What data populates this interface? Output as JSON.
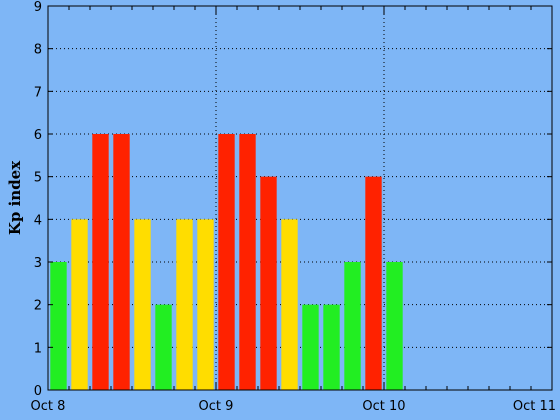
{
  "chart_data": {
    "type": "bar",
    "ylabel": "Kp index",
    "xlabel": "",
    "title": "",
    "ylim": [
      0,
      9
    ],
    "yticks": [
      "0",
      "1",
      "2",
      "3",
      "4",
      "5",
      "6",
      "7",
      "8",
      "9"
    ],
    "x_tick_labels": [
      "Oct 8",
      "Oct 9",
      "Oct 10",
      "Oct 11"
    ],
    "interval_hours": 3,
    "values": [
      3,
      4,
      6,
      6,
      4,
      2,
      4,
      4,
      6,
      6,
      5,
      4,
      2,
      2,
      3,
      5,
      3
    ],
    "grid": true,
    "color_rule": "green below 4, yellow at 4, red at 5 and above",
    "colors": {
      "background": "#7eb6f6",
      "green": "#22ee22",
      "yellow": "#ffdd00",
      "red": "#ff2200",
      "axis": "#000000",
      "grid": "#000000"
    }
  }
}
